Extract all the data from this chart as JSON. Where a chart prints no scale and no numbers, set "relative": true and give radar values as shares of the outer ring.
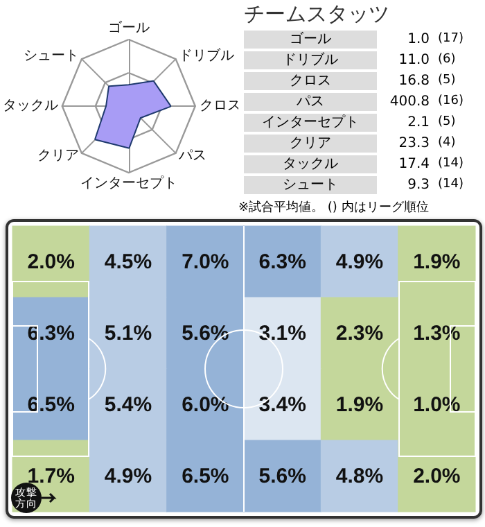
{
  "chart_data": [
    {
      "type": "radar",
      "relative": true,
      "categories": [
        "ゴール",
        "ドリブル",
        "クロス",
        "パス",
        "インターセプト",
        "クリア",
        "タックル",
        "シュート"
      ],
      "series": [
        {
          "color": "#1f3a6e",
          "values": [
            0.31,
            0.52,
            0.62,
            0.24,
            0.62,
            0.7,
            0.33,
            0.41
          ]
        }
      ],
      "marker": "none"
    },
    {
      "type": "other",
      "title": "チームスタッツ",
      "categories": [
        "ゴール",
        "ドリブル",
        "クロス",
        "パス",
        "インターセプト",
        "クリア",
        "タックル",
        "シュート"
      ],
      "series": [
        {
          "values": [
            1.0,
            11.0,
            16.8,
            400.8,
            2.1,
            23.3,
            17.4,
            9.3
          ],
          "value_labels": [
            "1.0",
            "11.0",
            "16.8",
            "400.8",
            "2.1",
            "23.3",
            "17.4",
            "9.3"
          ]
        },
        {
          "values": [
            17,
            6,
            5,
            16,
            5,
            4,
            14,
            14
          ],
          "value_labels": [
            "(17)",
            "(6)",
            "(5)",
            "(16)",
            "(5)",
            "(4)",
            "(14)",
            "(14)"
          ]
        }
      ],
      "annotations": [
        "※試合平均値。 () 内はリーグ順位"
      ]
    },
    {
      "type": "heatmap",
      "categories": [
        null,
        null,
        null,
        null,
        null,
        null
      ],
      "y_categories": [
        null,
        null,
        null,
        null
      ],
      "cells": [
        [
          2.0,
          4.5,
          7.0,
          6.3,
          4.9,
          1.9
        ],
        [
          6.3,
          5.1,
          5.6,
          3.1,
          2.3,
          1.3
        ],
        [
          6.5,
          5.4,
          6.0,
          3.4,
          1.9,
          1.0
        ],
        [
          1.7,
          4.9,
          6.5,
          5.6,
          4.8,
          2.0
        ]
      ],
      "cell_labels": [
        [
          "2.0%",
          "4.5%",
          "7.0%",
          "6.3%",
          "4.9%",
          "1.9%"
        ],
        [
          "6.3%",
          "5.1%",
          "5.6%",
          "3.1%",
          "2.3%",
          "1.3%"
        ],
        [
          "6.5%",
          "5.4%",
          "6.0%",
          "3.4%",
          "1.9%",
          "1.0%"
        ],
        [
          "1.7%",
          "4.9%",
          "6.5%",
          "5.6%",
          "4.8%",
          "2.0%"
        ]
      ],
      "annotations": [
        "攻撃方向"
      ]
    }
  ]
}
